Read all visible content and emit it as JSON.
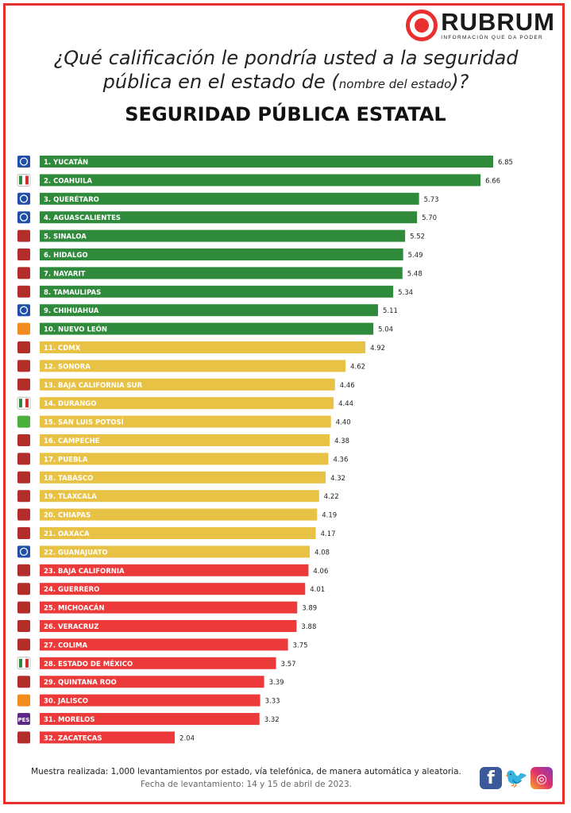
{
  "brand": {
    "name": "RUBRUM",
    "tagline": "INFORMACIÓN QUE DA PODER"
  },
  "header": {
    "question_main": "¿Qué calificación le pondría usted a la seguridad pública en el estado de (",
    "question_small": "nombre del estado",
    "question_end": ")?",
    "title": "SEGURIDAD PÚBLICA ESTATAL"
  },
  "colors": {
    "green": "#2f8a3b",
    "yellow": "#e8c244",
    "red": "#ec3a3a",
    "frame": "#e8312f"
  },
  "chart_data": {
    "type": "bar",
    "orientation": "horizontal",
    "title": "SEGURIDAD PÚBLICA ESTATAL",
    "xlabel": "",
    "ylabel": "",
    "xlim": [
      0,
      7
    ],
    "grid": false,
    "categories": [
      "1. YUCATÁN",
      "2. COAHUILA",
      "3. QUERÉTARO",
      "4. AGUASCALIENTES",
      "5. SINALOA",
      "6. HIDALGO",
      "7. NAYARIT",
      "8. TAMAULIPAS",
      "9. CHIHUAHUA",
      "10. NUEVO LEÓN",
      "11. CDMX",
      "12. SONORA",
      "13. BAJA CALIFORNIA SUR",
      "14. DURANGO",
      "15. SAN LUIS POTOSÍ",
      "16. CAMPECHE",
      "17. PUEBLA",
      "18. TABASCO",
      "19. TLAXCALA",
      "20. CHIAPAS",
      "21. OAXACA",
      "22. GUANAJUATO",
      "23. BAJA CALIFORNIA",
      "24. GUERRERO",
      "25. MICHOACÁN",
      "26. VERACRUZ",
      "27. COLIMA",
      "28. ESTADO DE MÉXICO",
      "29. QUINTANA ROO",
      "30. JALISCO",
      "31. MORELOS",
      "32. ZACATECAS"
    ],
    "values": [
      6.85,
      6.66,
      5.73,
      5.7,
      5.52,
      5.49,
      5.48,
      5.34,
      5.11,
      5.04,
      4.92,
      4.62,
      4.46,
      4.44,
      4.4,
      4.38,
      4.36,
      4.32,
      4.22,
      4.19,
      4.17,
      4.08,
      4.06,
      4.01,
      3.89,
      3.88,
      3.75,
      3.57,
      3.39,
      3.33,
      3.32,
      2.04
    ],
    "value_labels": [
      "6.85",
      "6.66",
      "5.73",
      "5.70",
      "5.52",
      "5.49",
      "5.48",
      "5.34",
      "5.11",
      "5.04",
      "4.92",
      "4.62",
      "4.46",
      "4.44",
      "4.40",
      "4.38",
      "4.36",
      "4.32",
      "4.22",
      "4.19",
      "4.17",
      "4.08",
      "4.06",
      "4.01",
      "3.89",
      "3.88",
      "3.75",
      "3.57",
      "3.39",
      "3.33",
      "3.32",
      "2.04"
    ],
    "bar_colors": [
      "green",
      "green",
      "green",
      "green",
      "green",
      "green",
      "green",
      "green",
      "green",
      "green",
      "yellow",
      "yellow",
      "yellow",
      "yellow",
      "yellow",
      "yellow",
      "yellow",
      "yellow",
      "yellow",
      "yellow",
      "yellow",
      "yellow",
      "red",
      "red",
      "red",
      "red",
      "red",
      "red",
      "red",
      "red",
      "red",
      "red"
    ],
    "party_icons": [
      "pan",
      "pri",
      "pan",
      "pan",
      "morena",
      "morena",
      "morena",
      "morena",
      "pan",
      "mc",
      "morena",
      "morena",
      "morena",
      "pri",
      "pvem",
      "morena",
      "morena",
      "morena",
      "morena",
      "morena",
      "morena",
      "pan",
      "morena",
      "morena",
      "morena",
      "morena",
      "morena",
      "pri",
      "morena",
      "mc",
      "pes",
      "morena"
    ],
    "party_icon_texts": {
      "pes": "PES"
    }
  },
  "party_colors": {
    "pan": "#1f4fa8",
    "pri": "#ffffff",
    "morena": "#b32d2a",
    "mc": "#f28c1e",
    "pvem": "#4caf3d",
    "pes": "#5b2a86"
  },
  "footer": {
    "sample": "Muestra realizada: 1,000 levantamientos por estado, vía telefónica, de manera automática y aleatoria.",
    "date": "Fecha de levantamiento: 14 y 15 de abril de 2023."
  },
  "social": {
    "facebook_icon": "f",
    "twitter_icon": "🐦",
    "instagram_icon": "◎"
  }
}
